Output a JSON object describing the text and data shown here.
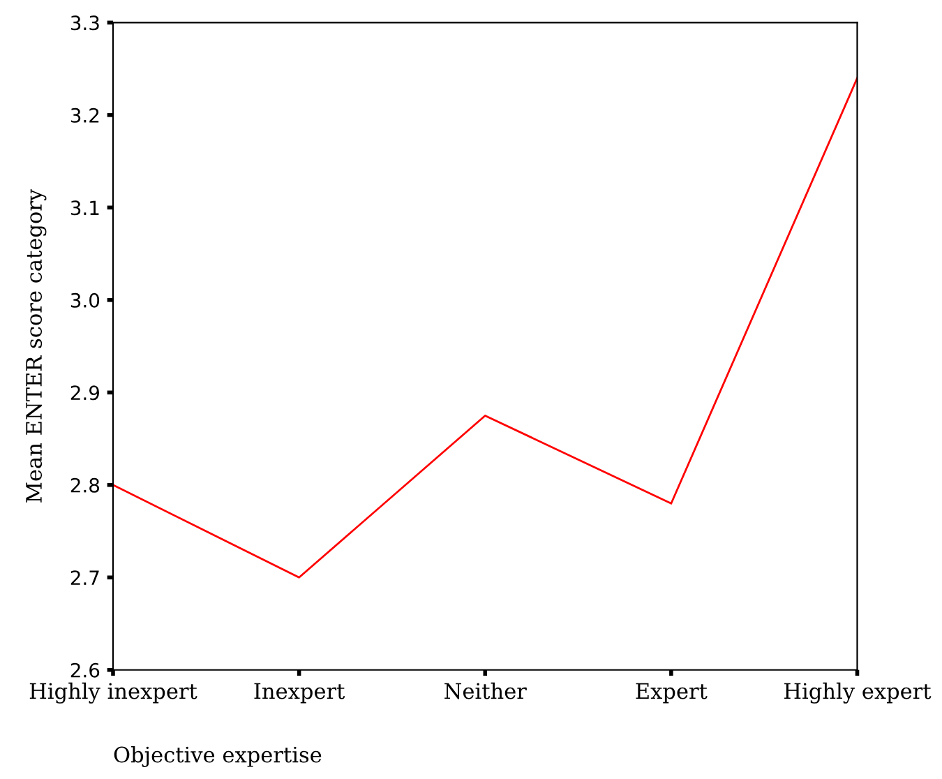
{
  "chart_data": {
    "type": "line",
    "xlabel": "Objective expertise",
    "ylabel": "Mean ENTER score category",
    "categories": [
      "Highly inexpert",
      "Inexpert",
      "Neither",
      "Expert",
      "Highly expert"
    ],
    "series": [
      {
        "color": "#ff0000",
        "values": [
          2.8,
          2.7,
          2.875,
          2.78,
          3.24
        ]
      }
    ],
    "ylim": [
      2.6,
      3.3
    ],
    "yticks": [
      {
        "value": 2.6,
        "label": "2.6"
      },
      {
        "value": 2.7,
        "label": "2.7"
      },
      {
        "value": 2.8,
        "label": "2.8"
      },
      {
        "value": 2.9,
        "label": "2.9"
      },
      {
        "value": 3.0,
        "label": "3.0"
      },
      {
        "value": 3.1,
        "label": "3.1"
      },
      {
        "value": 3.2,
        "label": "3.2"
      },
      {
        "value": 3.3,
        "label": "3.3"
      }
    ],
    "grid": false,
    "marker": "none",
    "line_style": "solid"
  }
}
